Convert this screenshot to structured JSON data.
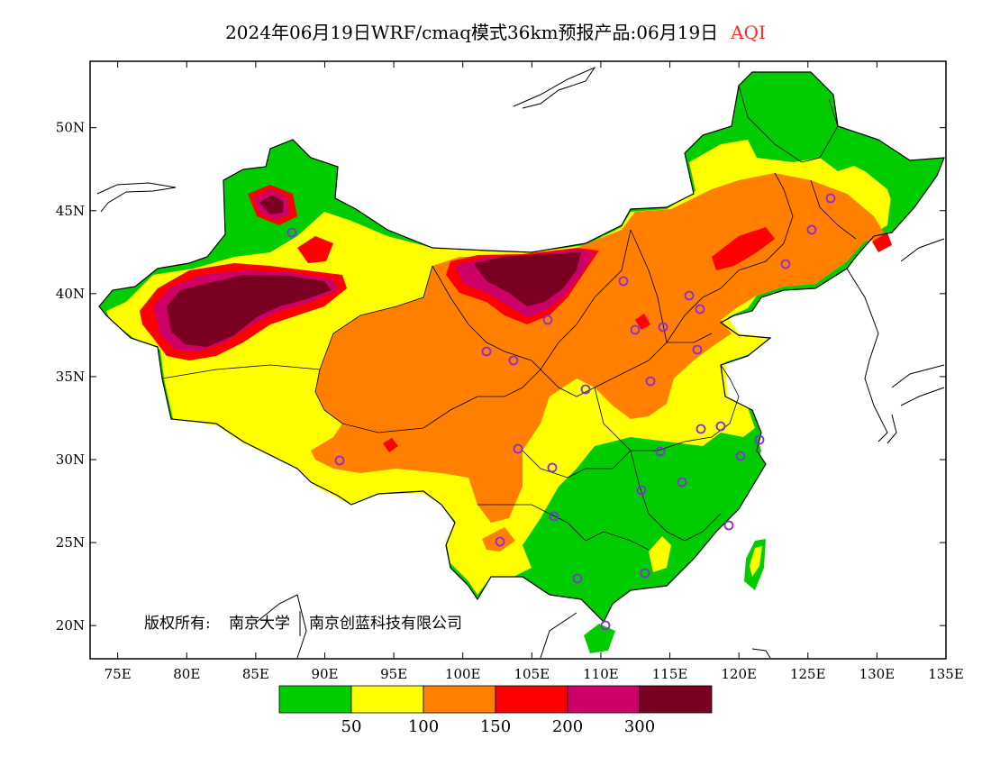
{
  "title": {
    "main": "2024年06月19日WRF/cmaq模式36km预报产品:06月19日",
    "variable": "AQI"
  },
  "axes": {
    "lon_range": [
      73,
      135
    ],
    "lat_range": [
      18,
      54
    ],
    "x_ticks": [
      "75E",
      "80E",
      "85E",
      "90E",
      "95E",
      "100E",
      "105E",
      "110E",
      "115E",
      "120E",
      "125E",
      "130E",
      "135E"
    ],
    "y_ticks": [
      "20N",
      "25N",
      "30N",
      "35N",
      "40N",
      "45N",
      "50N"
    ]
  },
  "copyright": {
    "prefix": "版权所有:",
    "owner1": "南京大学",
    "owner2": "南京创蓝科技有限公司"
  },
  "legend": {
    "colors": [
      "#00cc00",
      "#ffff00",
      "#ff8000",
      "#ff0000",
      "#cc0066",
      "#7a0022"
    ],
    "labels": [
      "50",
      "100",
      "150",
      "200",
      "300"
    ]
  },
  "colors": {
    "good": "#00cc00",
    "moderate": "#ffff00",
    "sensitive": "#ff8000",
    "unhealthy": "#ff0000",
    "very_unhealthy": "#cc0066",
    "hazardous": "#7a0022",
    "station_marker": "#8a2be2"
  }
}
